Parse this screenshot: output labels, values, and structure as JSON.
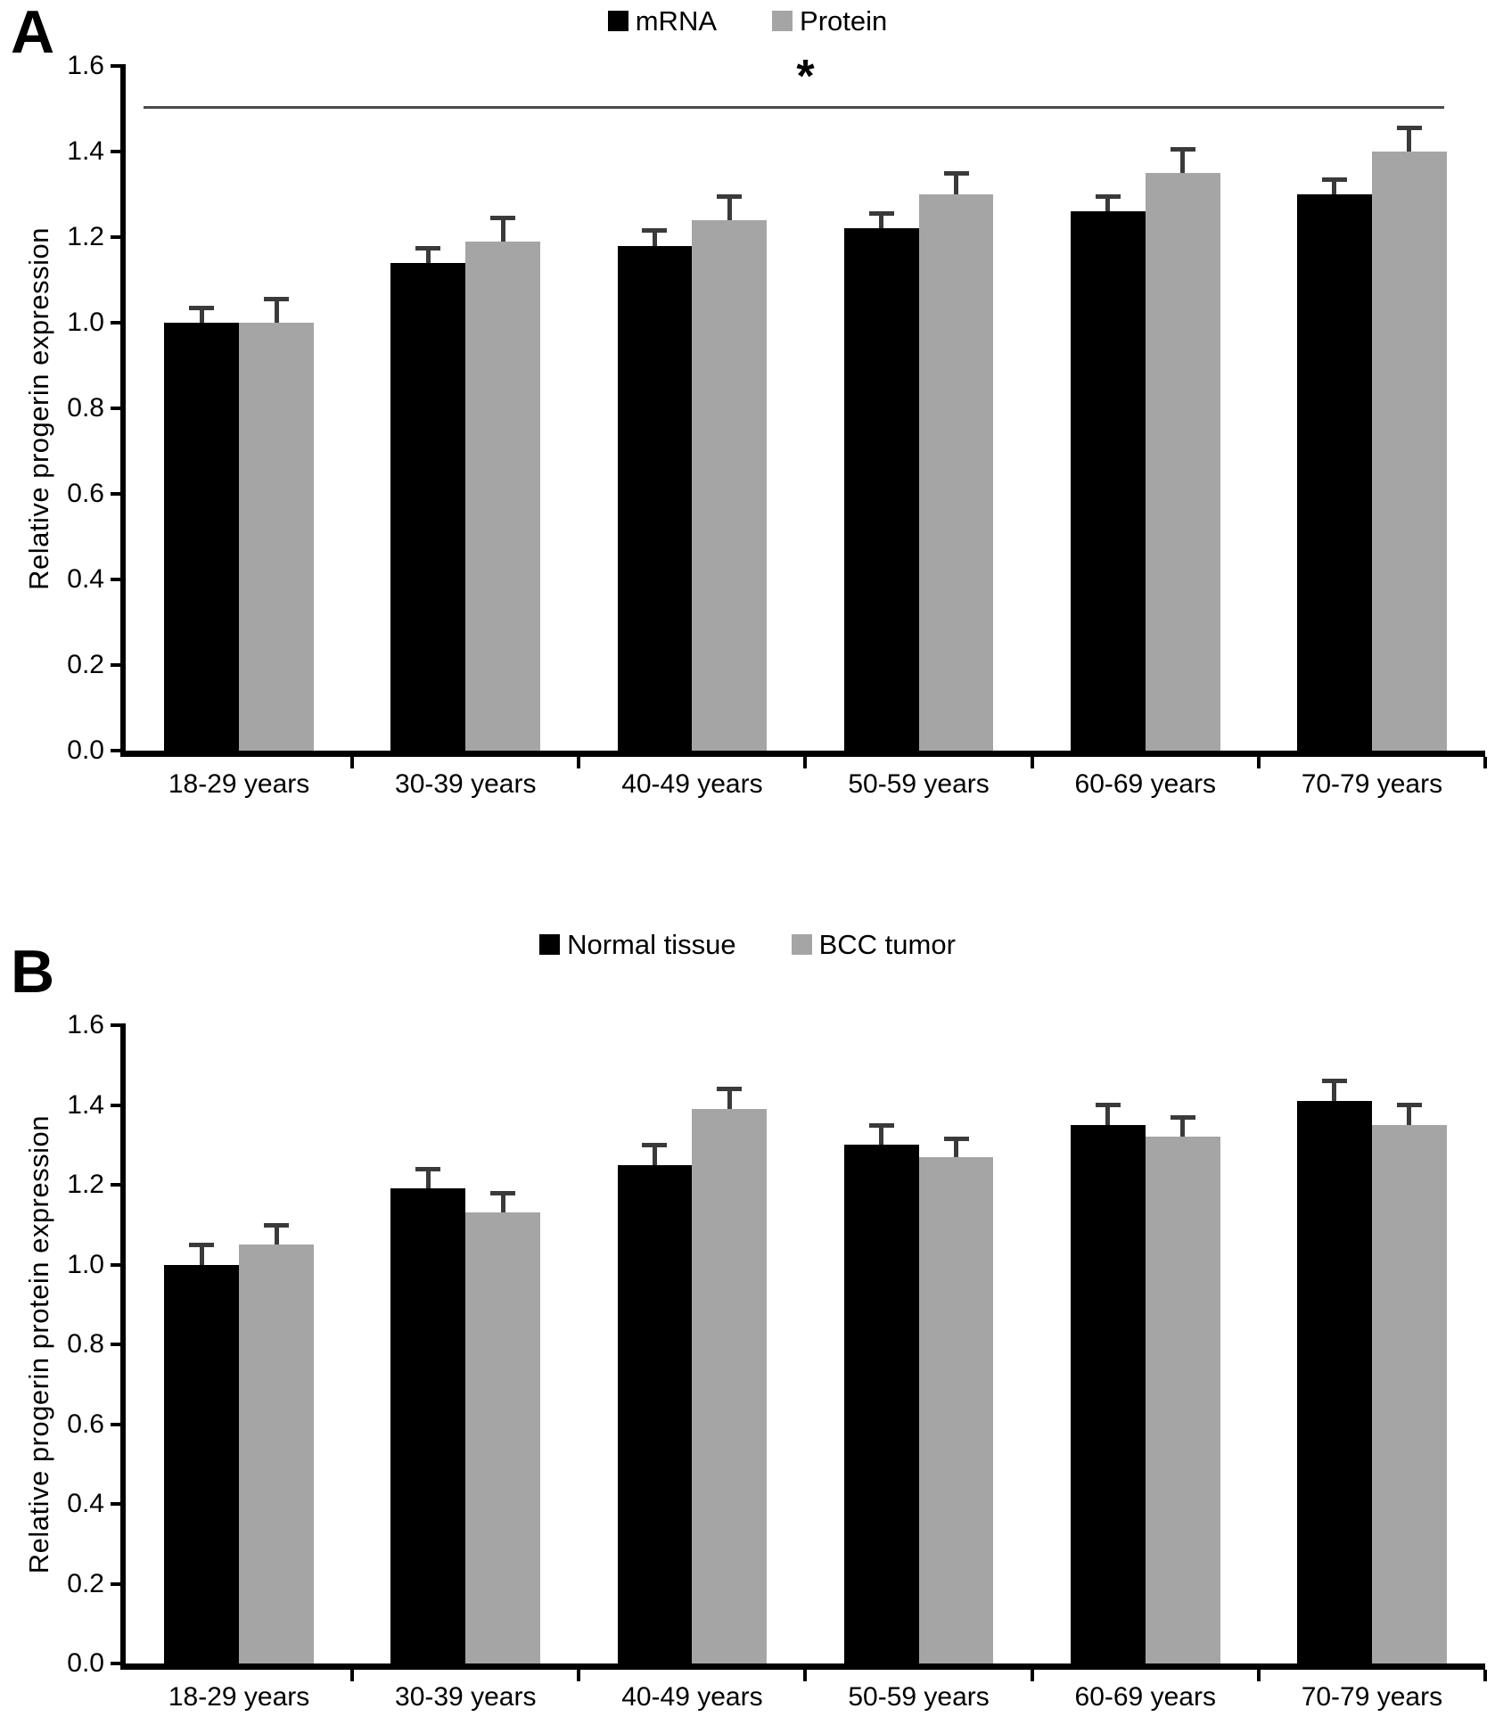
{
  "figure": {
    "background": "#ffffff",
    "axis_color": "#000000"
  },
  "chart_data": [
    {
      "panel_label": "A",
      "type": "bar",
      "title": "",
      "ylabel": "Relative progerin expression",
      "xlabel": "",
      "categories": [
        "18-29 years",
        "30-39 years",
        "40-49 years",
        "50-59 years",
        "60-69 years",
        "70-79 years"
      ],
      "series": [
        {
          "name": "mRNA",
          "color": "#000000",
          "values": [
            1.0,
            1.14,
            1.18,
            1.22,
            1.26,
            1.3
          ],
          "errors": [
            0.04,
            0.04,
            0.04,
            0.04,
            0.04,
            0.04
          ]
        },
        {
          "name": "Protein",
          "color": "#a5a5a5",
          "values": [
            1.0,
            1.19,
            1.24,
            1.3,
            1.35,
            1.4
          ],
          "errors": [
            0.06,
            0.06,
            0.06,
            0.055,
            0.06,
            0.06
          ]
        }
      ],
      "ylim": [
        0,
        1.6
      ],
      "yticks": [
        0,
        0.2,
        0.4,
        0.6,
        0.8,
        1.0,
        1.2,
        1.4,
        1.6
      ],
      "ytick_labels": [
        "0.0",
        "0.2",
        "0.4",
        "0.6",
        "0.8",
        "1.0",
        "1.2",
        "1.4",
        "1.6"
      ],
      "grid": false,
      "legend_position": "top-center",
      "error_bar_color": "#3a3a3a",
      "error_bar_direction": "upper-only",
      "significance": {
        "symbol": "*",
        "y": 1.5,
        "color": "#4a4a4a"
      }
    },
    {
      "panel_label": "B",
      "type": "bar",
      "title": "",
      "ylabel": "Relative progerin protein expression",
      "xlabel": "",
      "categories": [
        "18-29 years",
        "30-39 years",
        "40-49 years",
        "50-59 years",
        "60-69 years",
        "70-79 years"
      ],
      "series": [
        {
          "name": "Normal tissue",
          "color": "#000000",
          "values": [
            1.0,
            1.19,
            1.25,
            1.3,
            1.35,
            1.41
          ],
          "errors": [
            0.055,
            0.055,
            0.055,
            0.055,
            0.055,
            0.055
          ]
        },
        {
          "name": "BCC tumor",
          "color": "#a5a5a5",
          "values": [
            1.05,
            1.13,
            1.39,
            1.27,
            1.32,
            1.35
          ],
          "errors": [
            0.055,
            0.055,
            0.055,
            0.05,
            0.055,
            0.055
          ]
        }
      ],
      "ylim": [
        0,
        1.6
      ],
      "yticks": [
        0,
        0.2,
        0.4,
        0.6,
        0.8,
        1.0,
        1.2,
        1.4,
        1.6
      ],
      "ytick_labels": [
        "0.0",
        "0.2",
        "0.4",
        "0.6",
        "0.8",
        "1.0",
        "1.2",
        "1.4",
        "1.6"
      ],
      "grid": false,
      "legend_position": "top-center",
      "error_bar_color": "#3a3a3a",
      "error_bar_direction": "upper-only",
      "significance": null
    }
  ]
}
